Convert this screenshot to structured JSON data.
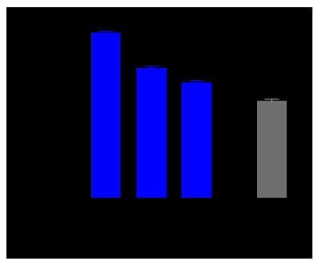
{
  "chart_data": {
    "type": "bar",
    "categories": [
      "",
      "",
      "",
      ""
    ],
    "values": [
      172,
      135,
      120,
      101
    ],
    "errors": [
      1,
      2,
      2,
      1.5
    ],
    "bar_colors": [
      "#0000ff",
      "#0000ff",
      "#0000ff",
      "#6e6e6e"
    ],
    "error_bar_colors": [
      "#0000ff",
      "#0000ff",
      "#0000ff",
      "#b0b0b0"
    ],
    "background_color": "#000000",
    "title": "",
    "xlabel": "",
    "ylabel": "",
    "ylim": [
      0,
      180
    ],
    "grid": false,
    "legend": "none"
  }
}
